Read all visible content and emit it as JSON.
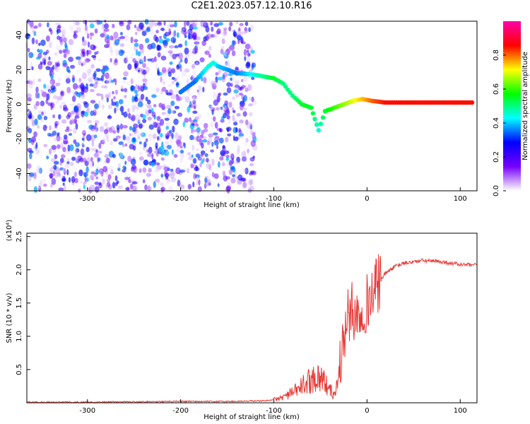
{
  "title": "C2E1.2023.057.12.10.R16",
  "chart_data": [
    {
      "type": "heatmap",
      "xlabel": "Height of straight line (km)",
      "ylabel": "Frequency (Hz)",
      "xlim": [
        -365,
        118
      ],
      "ylim": [
        -50,
        48
      ],
      "x_ticks": [
        -300,
        -200,
        -100,
        0,
        100
      ],
      "y_ticks": [
        -40,
        -20,
        0,
        20,
        40
      ],
      "colorbar": {
        "label": "Normalized spectral amplitude",
        "range": [
          0,
          1
        ],
        "ticks": [
          "0.0",
          "0.2",
          "0.4",
          "0.6",
          "0.8"
        ],
        "colors": [
          "#ffffff",
          "#7700ff",
          "#0000ff",
          "#00ffff",
          "#00ff00",
          "#ffff00",
          "#ff0000",
          "#ff00aa"
        ]
      },
      "noise_region_x": [
        -365,
        -120
      ],
      "signal_ridge": [
        {
          "x": -200,
          "y": 7,
          "amp": 0.35
        },
        {
          "x": -185,
          "y": 13,
          "amp": 0.35
        },
        {
          "x": -170,
          "y": 22,
          "amp": 0.45
        },
        {
          "x": -165,
          "y": 24,
          "amp": 0.45
        },
        {
          "x": -160,
          "y": 22,
          "amp": 0.4
        },
        {
          "x": -140,
          "y": 18,
          "amp": 0.35
        },
        {
          "x": -120,
          "y": 17,
          "amp": 0.45
        },
        {
          "x": -110,
          "y": 16,
          "amp": 0.5
        },
        {
          "x": -100,
          "y": 15,
          "amp": 0.55
        },
        {
          "x": -90,
          "y": 12,
          "amp": 0.5
        },
        {
          "x": -80,
          "y": 5,
          "amp": 0.5
        },
        {
          "x": -70,
          "y": 0,
          "amp": 0.55
        },
        {
          "x": -60,
          "y": -2,
          "amp": 0.55
        },
        {
          "x": -52,
          "y": -15,
          "amp": 0.45
        },
        {
          "x": -45,
          "y": -4,
          "amp": 0.55
        },
        {
          "x": -35,
          "y": -2,
          "amp": 0.6
        },
        {
          "x": -25,
          "y": 0,
          "amp": 0.65
        },
        {
          "x": -15,
          "y": 2,
          "amp": 0.7
        },
        {
          "x": -5,
          "y": 3,
          "amp": 0.75
        },
        {
          "x": 5,
          "y": 2,
          "amp": 0.8
        },
        {
          "x": 20,
          "y": 1,
          "amp": 0.85
        },
        {
          "x": 50,
          "y": 1,
          "amp": 0.85
        },
        {
          "x": 80,
          "y": 1,
          "amp": 0.85
        },
        {
          "x": 115,
          "y": 1,
          "amp": 0.85
        }
      ]
    },
    {
      "type": "line",
      "xlabel": "Height of straight line (km)",
      "ylabel": "SNR (10 * v/v)",
      "y_multiplier_label": "(x10⁴)",
      "xlim": [
        -365,
        118
      ],
      "ylim": [
        0,
        2.55
      ],
      "x_ticks": [
        -300,
        -200,
        -100,
        0,
        100
      ],
      "y_ticks": [
        "0.5",
        "1.0",
        "1.5",
        "2.0",
        "2.5"
      ],
      "color": "#e53935",
      "series": [
        {
          "x": [
            -365,
            -300,
            -200,
            -150,
            -110,
            -95,
            -80,
            -70,
            -60,
            -50,
            -45,
            -40,
            -35,
            -30,
            -25,
            -20,
            -15,
            -10,
            -5,
            0,
            10,
            20,
            30,
            40,
            50,
            60,
            70,
            80,
            90,
            100,
            110,
            118
          ],
          "y": [
            0.01,
            0.01,
            0.02,
            0.02,
            0.03,
            0.06,
            0.15,
            0.25,
            0.35,
            0.4,
            0.3,
            0.2,
            0.1,
            0.45,
            1.0,
            1.3,
            1.4,
            1.3,
            1.45,
            1.5,
            1.75,
            1.95,
            2.05,
            2.1,
            2.12,
            2.14,
            2.13,
            2.12,
            2.1,
            2.08,
            2.07,
            2.07
          ]
        }
      ]
    }
  ]
}
